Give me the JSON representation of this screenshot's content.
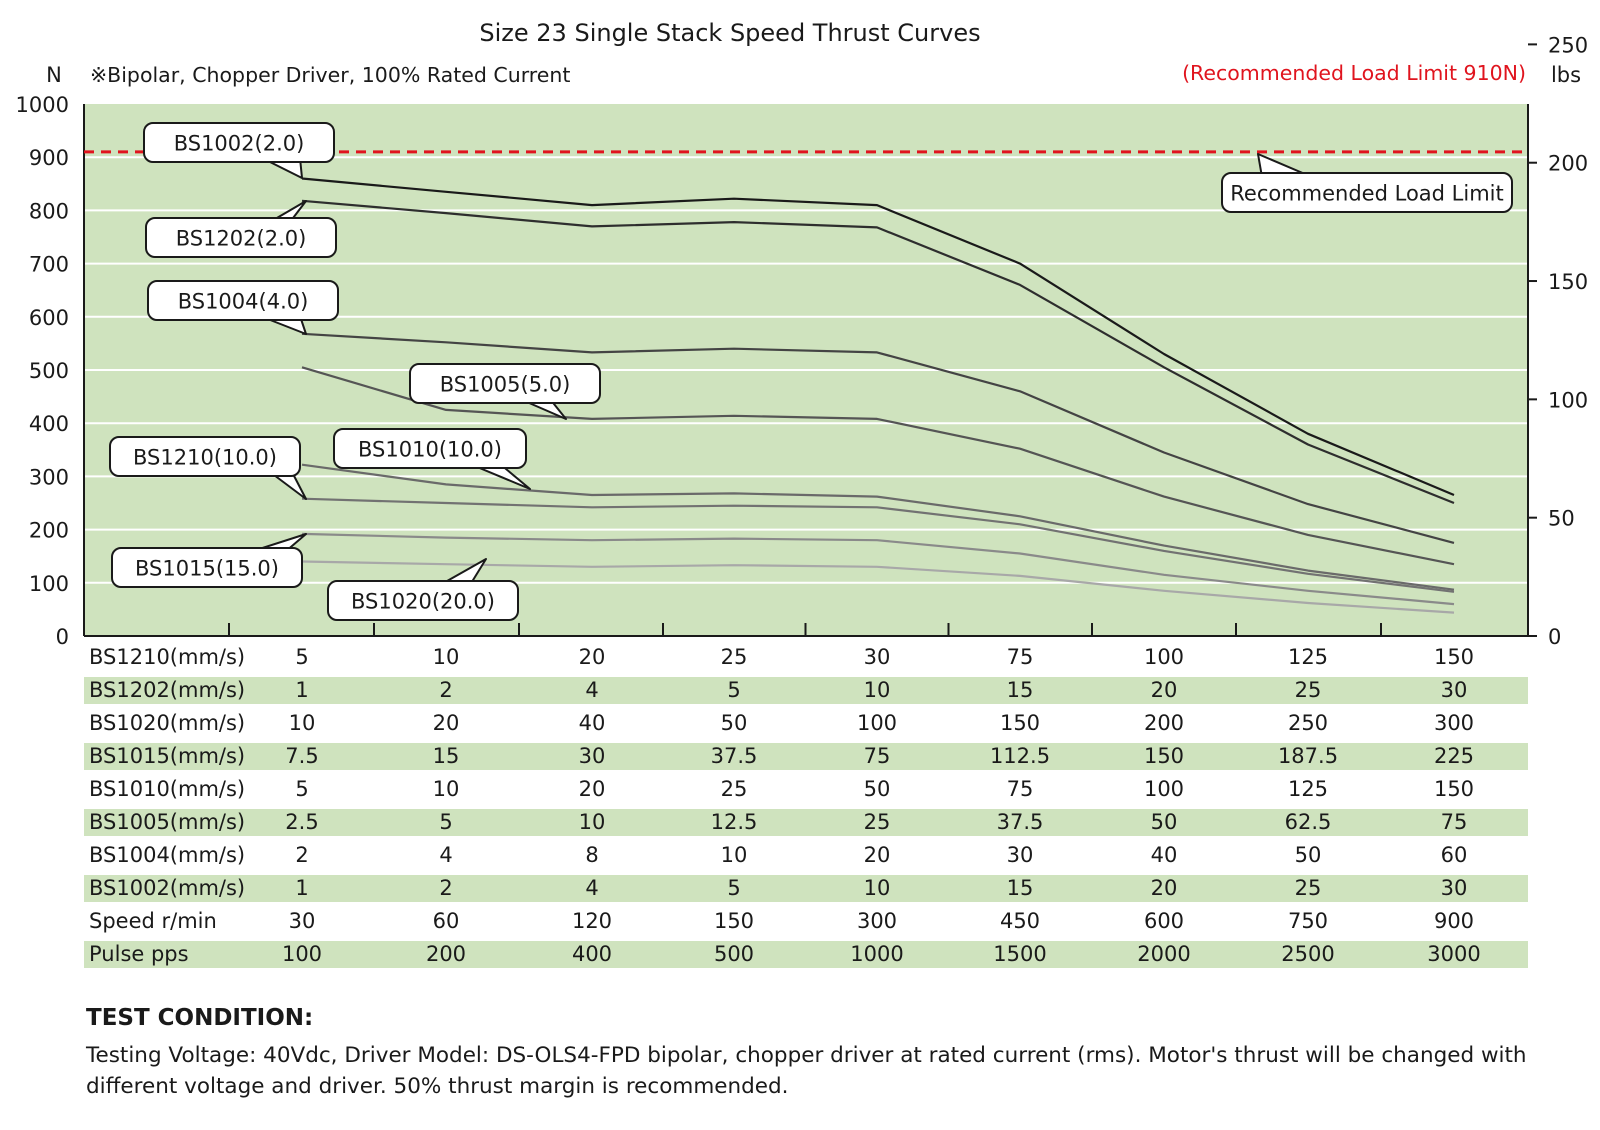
{
  "chart_data": {
    "type": "line",
    "title": "Size 23 Single Stack Speed Thrust Curves",
    "subtitle": "※Bipolar, Chopper Driver, 100% Rated Current",
    "recommended_note": "(Recommended Load Limit 910N)",
    "ylabel_left": "N",
    "ylabel_right": "lbs",
    "ylim": [
      0,
      1000
    ],
    "yticks_left": [
      0,
      100,
      200,
      300,
      400,
      500,
      600,
      700,
      800,
      900,
      1000
    ],
    "yticks_right": [
      0,
      50,
      100,
      150,
      200,
      250
    ],
    "grid": true,
    "colors": {
      "plot_bg": "#cfe3be",
      "grid": "#ffffff",
      "limit_line": "#e0141e",
      "band": "#cfe3be"
    },
    "load_limit": {
      "value": 910,
      "label": "Recommended Load Limit"
    },
    "series": [
      {
        "name": "BS1002(2.0)",
        "color": "#1a1a1a",
        "values": [
          860,
          835,
          810,
          822,
          810,
          700,
          530,
          380,
          265
        ]
      },
      {
        "name": "BS1202(2.0)",
        "color": "#2e2e2e",
        "values": [
          818,
          795,
          770,
          778,
          768,
          660,
          505,
          360,
          250
        ]
      },
      {
        "name": "BS1004(4.0)",
        "color": "#444444",
        "values": [
          568,
          552,
          533,
          540,
          533,
          460,
          345,
          248,
          175
        ]
      },
      {
        "name": "BS1005(5.0)",
        "color": "#555555",
        "values": [
          505,
          425,
          408,
          414,
          408,
          352,
          262,
          190,
          135
        ]
      },
      {
        "name": "BS1010(10.0)",
        "color": "#6a6a6a",
        "values": [
          322,
          285,
          265,
          268,
          262,
          225,
          170,
          123,
          87
        ]
      },
      {
        "name": "BS1210(10.0)",
        "color": "#727272",
        "values": [
          258,
          250,
          242,
          245,
          242,
          210,
          160,
          117,
          83
        ]
      },
      {
        "name": "BS1015(15.0)",
        "color": "#8a8a8a",
        "values": [
          192,
          185,
          180,
          183,
          180,
          155,
          115,
          85,
          60
        ]
      },
      {
        "name": "BS1020(20.0)",
        "color": "#a8a8a8",
        "values": [
          140,
          135,
          130,
          133,
          130,
          113,
          85,
          62,
          44
        ]
      }
    ],
    "table_rows": [
      {
        "label": "BS1210(mm/s)",
        "values": [
          "5",
          "10",
          "20",
          "25",
          "30",
          "75",
          "100",
          "125",
          "150"
        ]
      },
      {
        "label": "BS1202(mm/s)",
        "values": [
          "1",
          "2",
          "4",
          "5",
          "10",
          "15",
          "20",
          "25",
          "30"
        ]
      },
      {
        "label": "BS1020(mm/s)",
        "values": [
          "10",
          "20",
          "40",
          "50",
          "100",
          "150",
          "200",
          "250",
          "300"
        ]
      },
      {
        "label": "BS1015(mm/s)",
        "values": [
          "7.5",
          "15",
          "30",
          "37.5",
          "75",
          "112.5",
          "150",
          "187.5",
          "225"
        ]
      },
      {
        "label": "BS1010(mm/s)",
        "values": [
          "5",
          "10",
          "20",
          "25",
          "50",
          "75",
          "100",
          "125",
          "150"
        ]
      },
      {
        "label": "BS1005(mm/s)",
        "values": [
          "2.5",
          "5",
          "10",
          "12.5",
          "25",
          "37.5",
          "50",
          "62.5",
          "75"
        ]
      },
      {
        "label": "BS1004(mm/s)",
        "values": [
          "2",
          "4",
          "8",
          "10",
          "20",
          "30",
          "40",
          "50",
          "60"
        ]
      },
      {
        "label": "BS1002(mm/s)",
        "values": [
          "1",
          "2",
          "4",
          "5",
          "10",
          "15",
          "20",
          "25",
          "30"
        ]
      },
      {
        "label": "Speed r/min",
        "values": [
          "30",
          "60",
          "120",
          "150",
          "300",
          "450",
          "600",
          "750",
          "900"
        ]
      },
      {
        "label": "Pulse  pps",
        "values": [
          "100",
          "200",
          "400",
          "500",
          "1000",
          "1500",
          "2000",
          "2500",
          "3000"
        ]
      }
    ]
  },
  "test_condition": {
    "title": "TEST CONDITION:",
    "text": "Testing Voltage: 40Vdc, Driver Model: DS-OLS4-FPD bipolar, chopper driver at rated current (rms). Motor's thrust will be changed with different voltage and driver. 50% thrust margin is recommended."
  }
}
